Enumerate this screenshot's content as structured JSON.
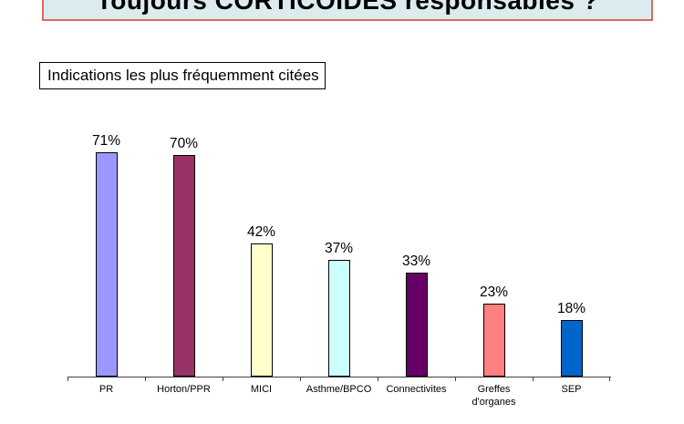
{
  "slide": {
    "title": "Toujours CORTICOIDES responsables ?",
    "subtitle_box": "Indications les plus fréquemment citées"
  },
  "chart_data": {
    "type": "bar",
    "title": "",
    "xlabel": "",
    "ylabel": "",
    "categories": [
      "PR",
      "Horton/PPR",
      "MICI",
      "Asthme/BPCO",
      "Connectivites",
      "Greffes\nd'organes",
      "SEP"
    ],
    "values": [
      71,
      70,
      42,
      37,
      33,
      23,
      18
    ],
    "value_labels": [
      "71%",
      "70%",
      "42%",
      "37%",
      "33%",
      "23%",
      "18%"
    ],
    "bar_colors": [
      "#9999ff",
      "#993366",
      "#ffffcc",
      "#ccffff",
      "#660066",
      "#ff8080",
      "#0066cc"
    ],
    "bar_border_color": "#000000",
    "axis_color": "#3f3f3f",
    "ylim": [
      0,
      80
    ],
    "grid": false,
    "legend": false,
    "data_labels": "outside-end, percent"
  },
  "colors": {
    "slide_background": "#ffffff",
    "title_background": "#dcebee",
    "title_border": "#e06666",
    "subtitle_border": "#000000"
  }
}
